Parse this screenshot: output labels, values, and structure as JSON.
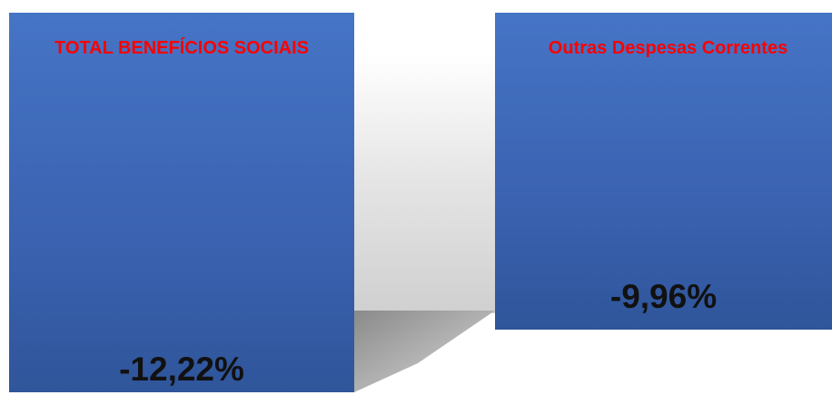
{
  "cards": [
    {
      "title": "TOTAL BENEFÍCIOS SOCIAIS",
      "value": "-12,22%"
    },
    {
      "title": "Outras Despesas Correntes",
      "value": "-9,96%"
    }
  ]
}
